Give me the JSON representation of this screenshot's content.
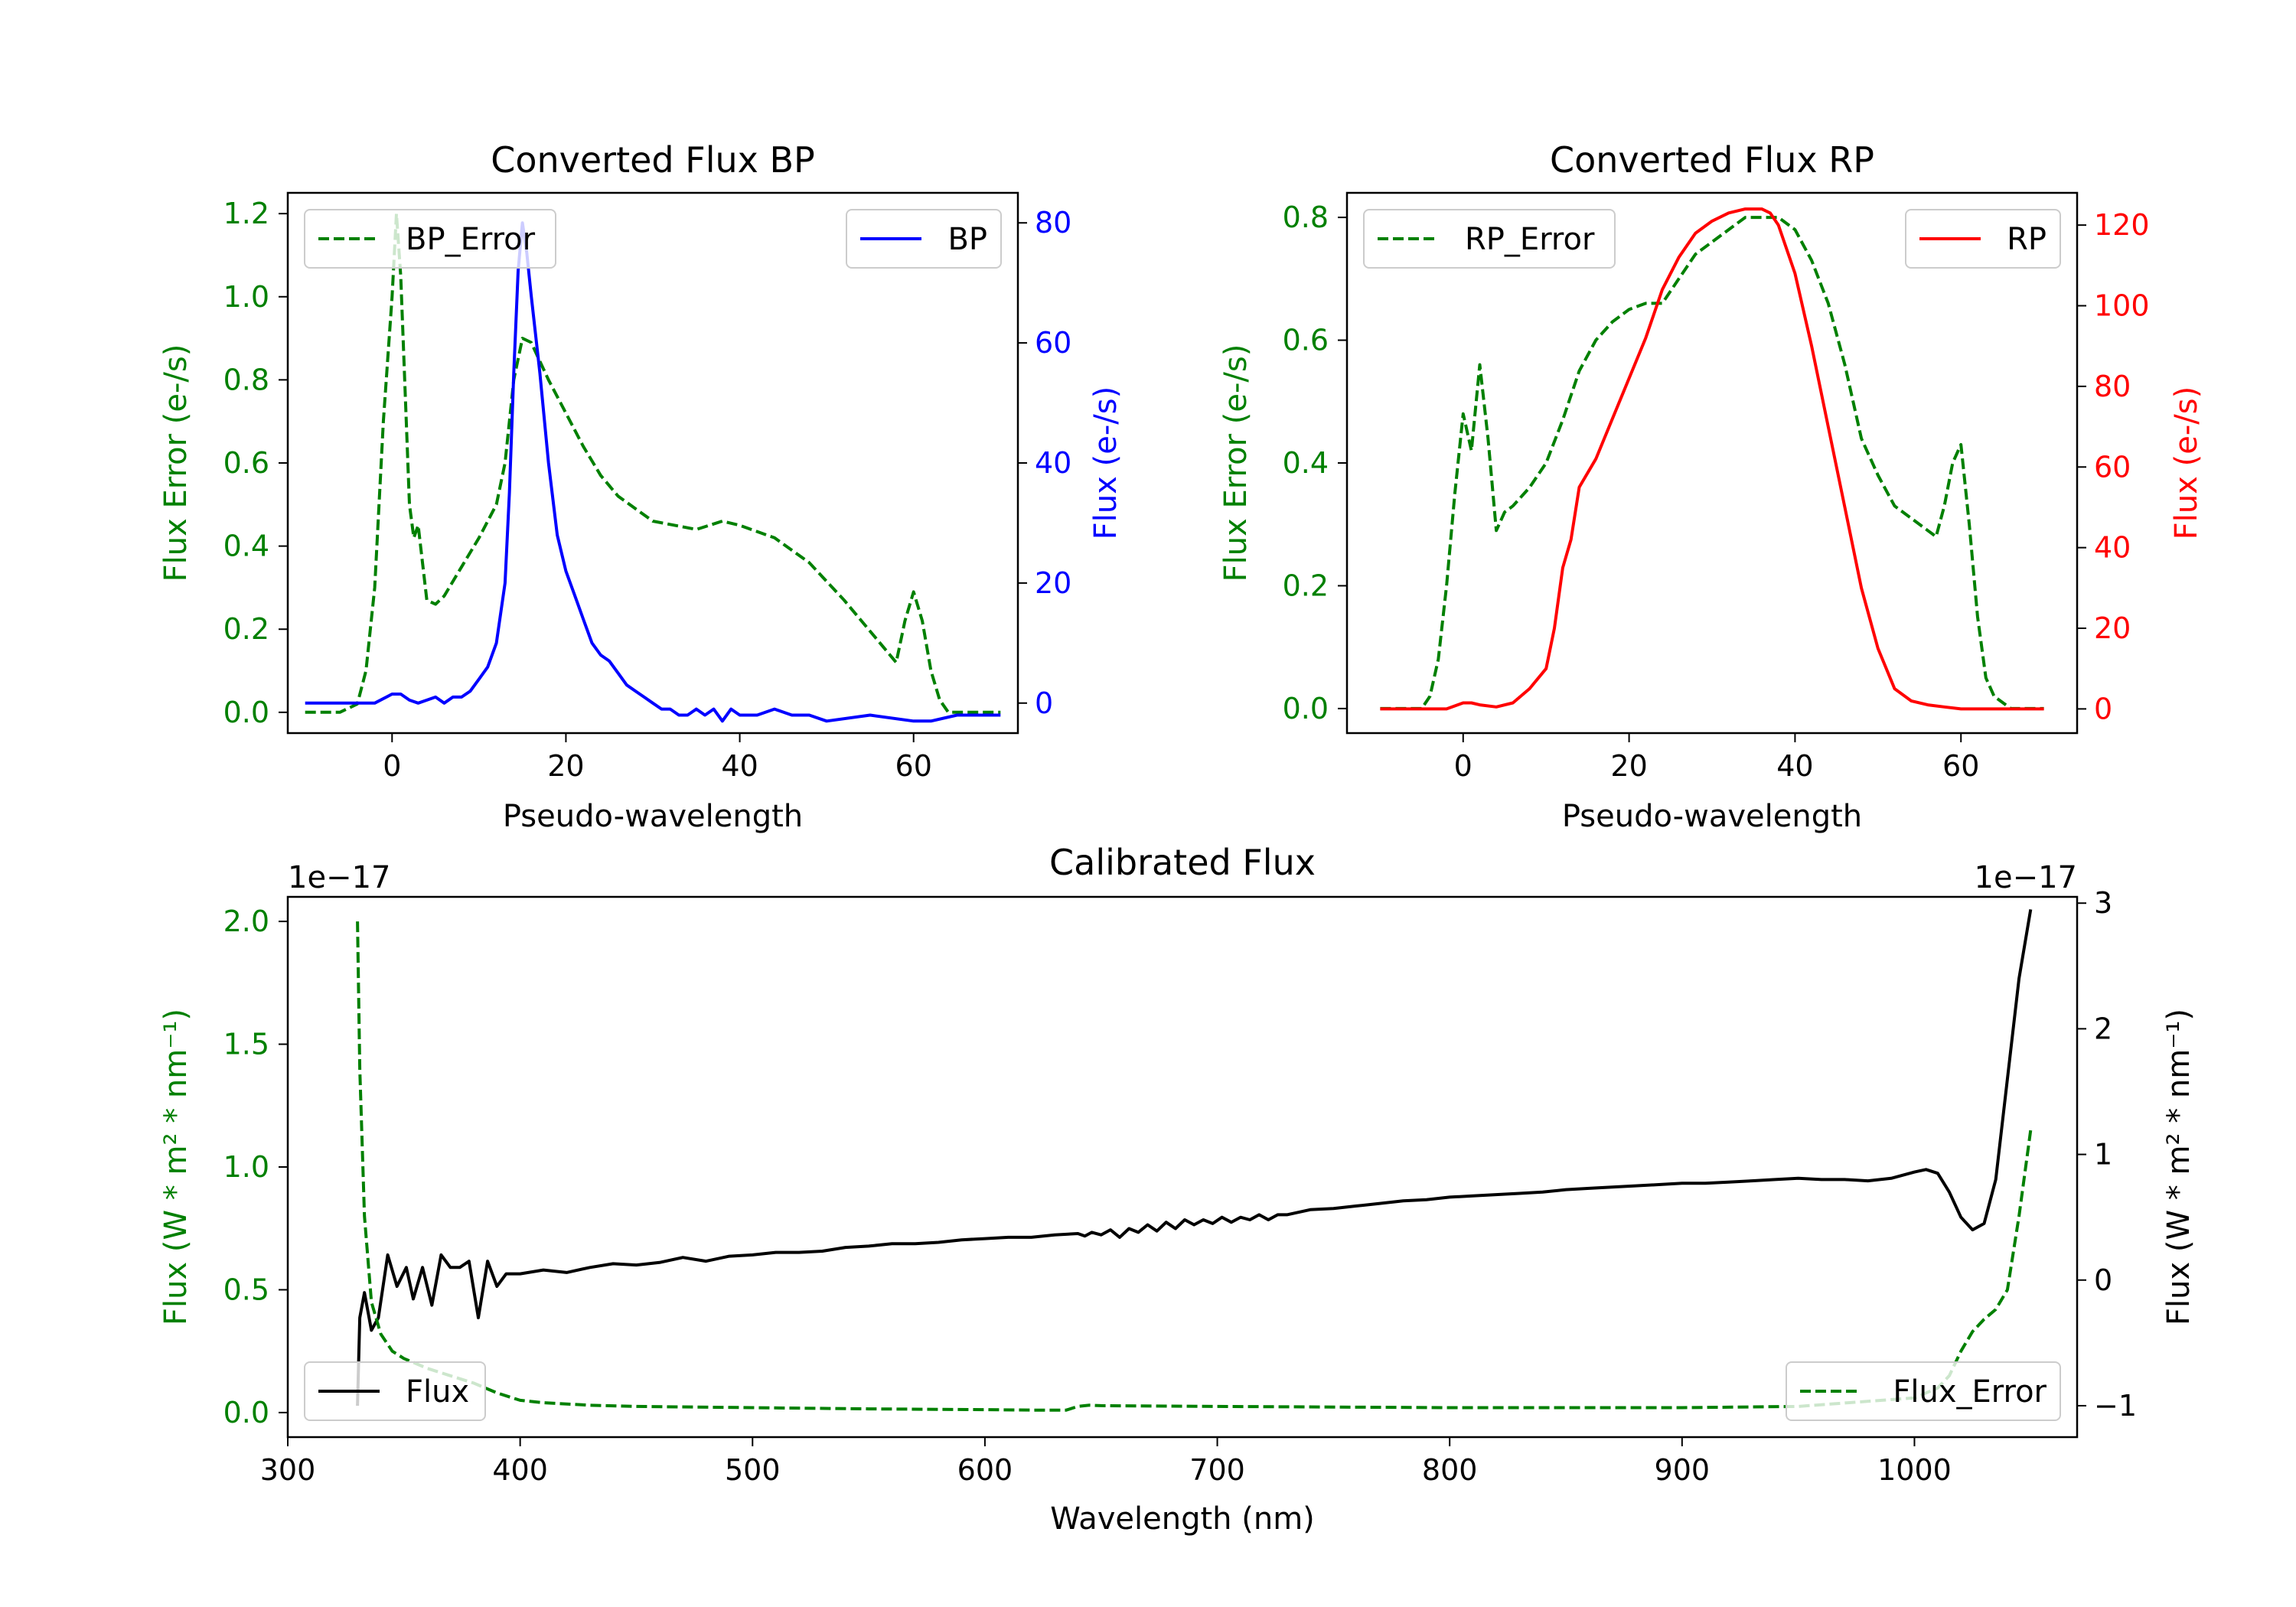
{
  "colors": {
    "green": "#008000",
    "blue": "#0000ff",
    "red": "#ff0000",
    "black": "#000000"
  },
  "chart_data": [
    {
      "id": "bp",
      "type": "line",
      "title": "Converted Flux BP",
      "xlabel": "Pseudo-wavelength",
      "ylabel_left": "Flux Error (e-/s)",
      "ylabel_right": "Flux (e-/s)",
      "xlim": [
        -12,
        72
      ],
      "ylim_left": [
        -0.05,
        1.25
      ],
      "ylim_right": [
        -5,
        85
      ],
      "xticks": [
        "0",
        "20",
        "40",
        "60"
      ],
      "yticks_left": [
        "0.0",
        "0.2",
        "0.4",
        "0.6",
        "0.8",
        "1.0",
        "1.2"
      ],
      "yticks_right": [
        "0",
        "20",
        "40",
        "60",
        "80"
      ],
      "legend_left": "BP_Error",
      "legend_right": "BP",
      "series": [
        {
          "name": "BP_Error",
          "axis": "left",
          "style": "dashed",
          "color": "green",
          "x": [
            -10,
            -6,
            -4,
            -3,
            -2,
            -1,
            0,
            0.5,
            1,
            2,
            2.5,
            3,
            4,
            5,
            6,
            8,
            10,
            12,
            13,
            14,
            15,
            16,
            18,
            20,
            22,
            24,
            26,
            30,
            35,
            38,
            40,
            44,
            48,
            52,
            56,
            58,
            59,
            60,
            61,
            62,
            63,
            64,
            66,
            70
          ],
          "y": [
            0,
            0,
            0.02,
            0.1,
            0.3,
            0.7,
            1.0,
            1.2,
            1.05,
            0.5,
            0.42,
            0.45,
            0.27,
            0.26,
            0.28,
            0.35,
            0.42,
            0.5,
            0.6,
            0.8,
            0.9,
            0.89,
            0.8,
            0.72,
            0.64,
            0.57,
            0.52,
            0.46,
            0.44,
            0.46,
            0.45,
            0.42,
            0.36,
            0.27,
            0.17,
            0.12,
            0.22,
            0.29,
            0.22,
            0.1,
            0.03,
            0,
            0,
            0
          ]
        },
        {
          "name": "BP",
          "axis": "right",
          "style": "solid",
          "color": "blue",
          "x": [
            -10,
            -2,
            0,
            1,
            2,
            3,
            4,
            5,
            6,
            7,
            8,
            9,
            10,
            11,
            12,
            13,
            13.5,
            14,
            14.5,
            15,
            15.5,
            16,
            17,
            18,
            19,
            20,
            21,
            22,
            23,
            24,
            25,
            26,
            27,
            28,
            29,
            30,
            31,
            32,
            33,
            34,
            35,
            36,
            37,
            38,
            39,
            40,
            42,
            44,
            46,
            48,
            50,
            55,
            60,
            62,
            65,
            70
          ],
          "y": [
            0,
            0,
            1.5,
            1.5,
            0.5,
            0,
            0.5,
            1,
            0,
            1,
            1,
            2,
            4,
            6,
            10,
            20,
            35,
            55,
            72,
            80,
            75,
            68,
            55,
            40,
            28,
            22,
            18,
            14,
            10,
            8,
            7,
            5,
            3,
            2,
            1,
            0,
            -1,
            -1,
            -2,
            -2,
            -1,
            -2,
            -1,
            -3,
            -1,
            -2,
            -2,
            -1,
            -2,
            -2,
            -3,
            -2,
            -3,
            -3,
            -2,
            -2
          ]
        }
      ]
    },
    {
      "id": "rp",
      "type": "line",
      "title": "Converted Flux RP",
      "xlabel": "Pseudo-wavelength",
      "ylabel_left": "Flux Error (e-/s)",
      "ylabel_right": "Flux (e-/s)",
      "xlim": [
        -14,
        74
      ],
      "ylim_left": [
        -0.04,
        0.84
      ],
      "ylim_right": [
        -6,
        128
      ],
      "xticks": [
        "0",
        "20",
        "40",
        "60"
      ],
      "yticks_left": [
        "0.0",
        "0.2",
        "0.4",
        "0.6",
        "0.8"
      ],
      "yticks_right": [
        "0",
        "20",
        "40",
        "60",
        "80",
        "100",
        "120"
      ],
      "legend_left": "RP_Error",
      "legend_right": "RP",
      "series": [
        {
          "name": "RP_Error",
          "axis": "left",
          "style": "dashed",
          "color": "green",
          "x": [
            -10,
            -5,
            -4,
            -3,
            -2,
            -1,
            0,
            1,
            2,
            3,
            4,
            5,
            6,
            8,
            10,
            12,
            14,
            16,
            18,
            20,
            22,
            24,
            26,
            28,
            30,
            32,
            34,
            36,
            38,
            40,
            42,
            44,
            46,
            48,
            50,
            52,
            54,
            56,
            57,
            58,
            59,
            60,
            61,
            62,
            63,
            64,
            66,
            70
          ],
          "y": [
            0,
            0,
            0.02,
            0.08,
            0.2,
            0.35,
            0.48,
            0.42,
            0.56,
            0.44,
            0.29,
            0.32,
            0.33,
            0.36,
            0.4,
            0.47,
            0.55,
            0.6,
            0.63,
            0.65,
            0.66,
            0.66,
            0.7,
            0.74,
            0.76,
            0.78,
            0.8,
            0.8,
            0.8,
            0.78,
            0.73,
            0.66,
            0.56,
            0.44,
            0.38,
            0.33,
            0.31,
            0.29,
            0.28,
            0.33,
            0.4,
            0.43,
            0.3,
            0.15,
            0.05,
            0.02,
            0,
            0
          ]
        },
        {
          "name": "RP",
          "axis": "right",
          "style": "solid",
          "color": "red",
          "x": [
            -10,
            -2,
            0,
            1,
            2,
            4,
            6,
            8,
            10,
            11,
            12,
            13,
            14,
            16,
            18,
            20,
            22,
            24,
            26,
            28,
            30,
            32,
            34,
            35,
            36,
            37,
            38,
            40,
            42,
            44,
            46,
            48,
            50,
            52,
            54,
            56,
            58,
            60,
            62,
            70
          ],
          "y": [
            0,
            0,
            1.5,
            1.5,
            1,
            0.5,
            1.5,
            5,
            10,
            20,
            35,
            42,
            55,
            62,
            72,
            82,
            92,
            104,
            112,
            118,
            121,
            123,
            124,
            124,
            124,
            123,
            120,
            108,
            90,
            70,
            50,
            30,
            15,
            5,
            2,
            1,
            0.5,
            0,
            0,
            0
          ]
        }
      ]
    },
    {
      "id": "calibrated",
      "type": "line",
      "title": "Calibrated Flux",
      "xlabel": "Wavelength (nm)",
      "ylabel_left": "Flux (W * m² * nm⁻¹)",
      "ylabel_right": "Flux (W * m² * nm⁻¹)",
      "offset_left": "1e−17",
      "offset_right": "1e−17",
      "xlim": [
        300,
        1070
      ],
      "ylim_left": [
        -0.1,
        2.1
      ],
      "ylim_right": [
        -1.25,
        3.05
      ],
      "xticks": [
        "300",
        "400",
        "500",
        "600",
        "700",
        "800",
        "900",
        "1000"
      ],
      "yticks_left": [
        "0.0",
        "0.5",
        "1.0",
        "1.5",
        "2.0"
      ],
      "yticks_right": [
        "−1",
        "0",
        "1",
        "2",
        "3"
      ],
      "legend_left": "Flux",
      "legend_right": "Flux_Error",
      "series": [
        {
          "name": "Flux",
          "axis": "right",
          "style": "solid",
          "color": "black",
          "x": [
            330,
            331,
            333,
            336,
            339,
            343,
            347,
            351,
            354,
            358,
            362,
            366,
            370,
            374,
            378,
            382,
            386,
            390,
            394,
            400,
            410,
            420,
            430,
            440,
            450,
            460,
            470,
            480,
            490,
            500,
            510,
            520,
            530,
            540,
            550,
            560,
            570,
            580,
            590,
            600,
            610,
            620,
            630,
            640,
            643,
            646,
            650,
            654,
            658,
            662,
            666,
            670,
            674,
            678,
            682,
            686,
            690,
            694,
            698,
            702,
            706,
            710,
            714,
            718,
            722,
            726,
            730,
            740,
            750,
            760,
            770,
            780,
            790,
            800,
            810,
            820,
            830,
            840,
            850,
            860,
            870,
            880,
            890,
            900,
            910,
            920,
            930,
            940,
            950,
            960,
            970,
            980,
            990,
            1000,
            1005,
            1010,
            1015,
            1020,
            1025,
            1030,
            1035,
            1040,
            1045,
            1050
          ],
          "y": [
            -1.0,
            -0.3,
            -0.1,
            -0.4,
            -0.3,
            0.2,
            -0.05,
            0.1,
            -0.15,
            0.1,
            -0.2,
            0.2,
            0.1,
            0.1,
            0.15,
            -0.3,
            0.15,
            -0.05,
            0.05,
            0.05,
            0.08,
            0.06,
            0.1,
            0.13,
            0.12,
            0.14,
            0.18,
            0.15,
            0.19,
            0.2,
            0.22,
            0.22,
            0.23,
            0.26,
            0.27,
            0.29,
            0.29,
            0.3,
            0.32,
            0.33,
            0.34,
            0.34,
            0.36,
            0.37,
            0.35,
            0.38,
            0.36,
            0.4,
            0.34,
            0.41,
            0.38,
            0.44,
            0.39,
            0.46,
            0.41,
            0.48,
            0.44,
            0.48,
            0.45,
            0.5,
            0.46,
            0.5,
            0.48,
            0.52,
            0.48,
            0.52,
            0.52,
            0.56,
            0.57,
            0.59,
            0.61,
            0.63,
            0.64,
            0.66,
            0.67,
            0.68,
            0.69,
            0.7,
            0.72,
            0.73,
            0.74,
            0.75,
            0.76,
            0.77,
            0.77,
            0.78,
            0.79,
            0.8,
            0.81,
            0.8,
            0.8,
            0.79,
            0.81,
            0.86,
            0.88,
            0.85,
            0.7,
            0.5,
            0.4,
            0.45,
            0.8,
            1.6,
            2.4,
            2.95
          ]
        },
        {
          "name": "Flux_Error",
          "axis": "left",
          "style": "dashed",
          "color": "green",
          "x": [
            330,
            331,
            333,
            336,
            340,
            345,
            350,
            360,
            370,
            380,
            390,
            400,
            410,
            430,
            450,
            500,
            550,
            600,
            620,
            635,
            640,
            645,
            650,
            700,
            800,
            900,
            950,
            1000,
            1010,
            1015,
            1020,
            1025,
            1030,
            1035,
            1040,
            1045,
            1050
          ],
          "y": [
            2.0,
            1.4,
            0.8,
            0.45,
            0.32,
            0.25,
            0.22,
            0.18,
            0.15,
            0.12,
            0.08,
            0.05,
            0.04,
            0.03,
            0.025,
            0.02,
            0.015,
            0.012,
            0.01,
            0.01,
            0.025,
            0.03,
            0.028,
            0.025,
            0.02,
            0.02,
            0.025,
            0.06,
            0.1,
            0.15,
            0.25,
            0.33,
            0.38,
            0.42,
            0.5,
            0.8,
            1.15
          ]
        }
      ]
    }
  ]
}
